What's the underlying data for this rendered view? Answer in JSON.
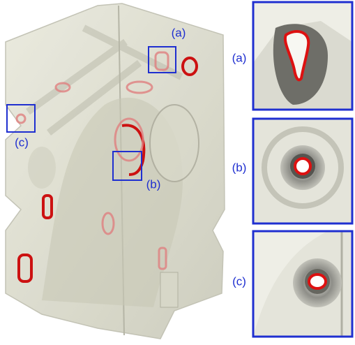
{
  "figure": {
    "callouts": [
      {
        "label": "(a)"
      },
      {
        "label": "(b)"
      },
      {
        "label": "(c)"
      }
    ],
    "insets": [
      {
        "label": "(a)"
      },
      {
        "label": "(b)"
      },
      {
        "label": "(c)"
      }
    ]
  }
}
